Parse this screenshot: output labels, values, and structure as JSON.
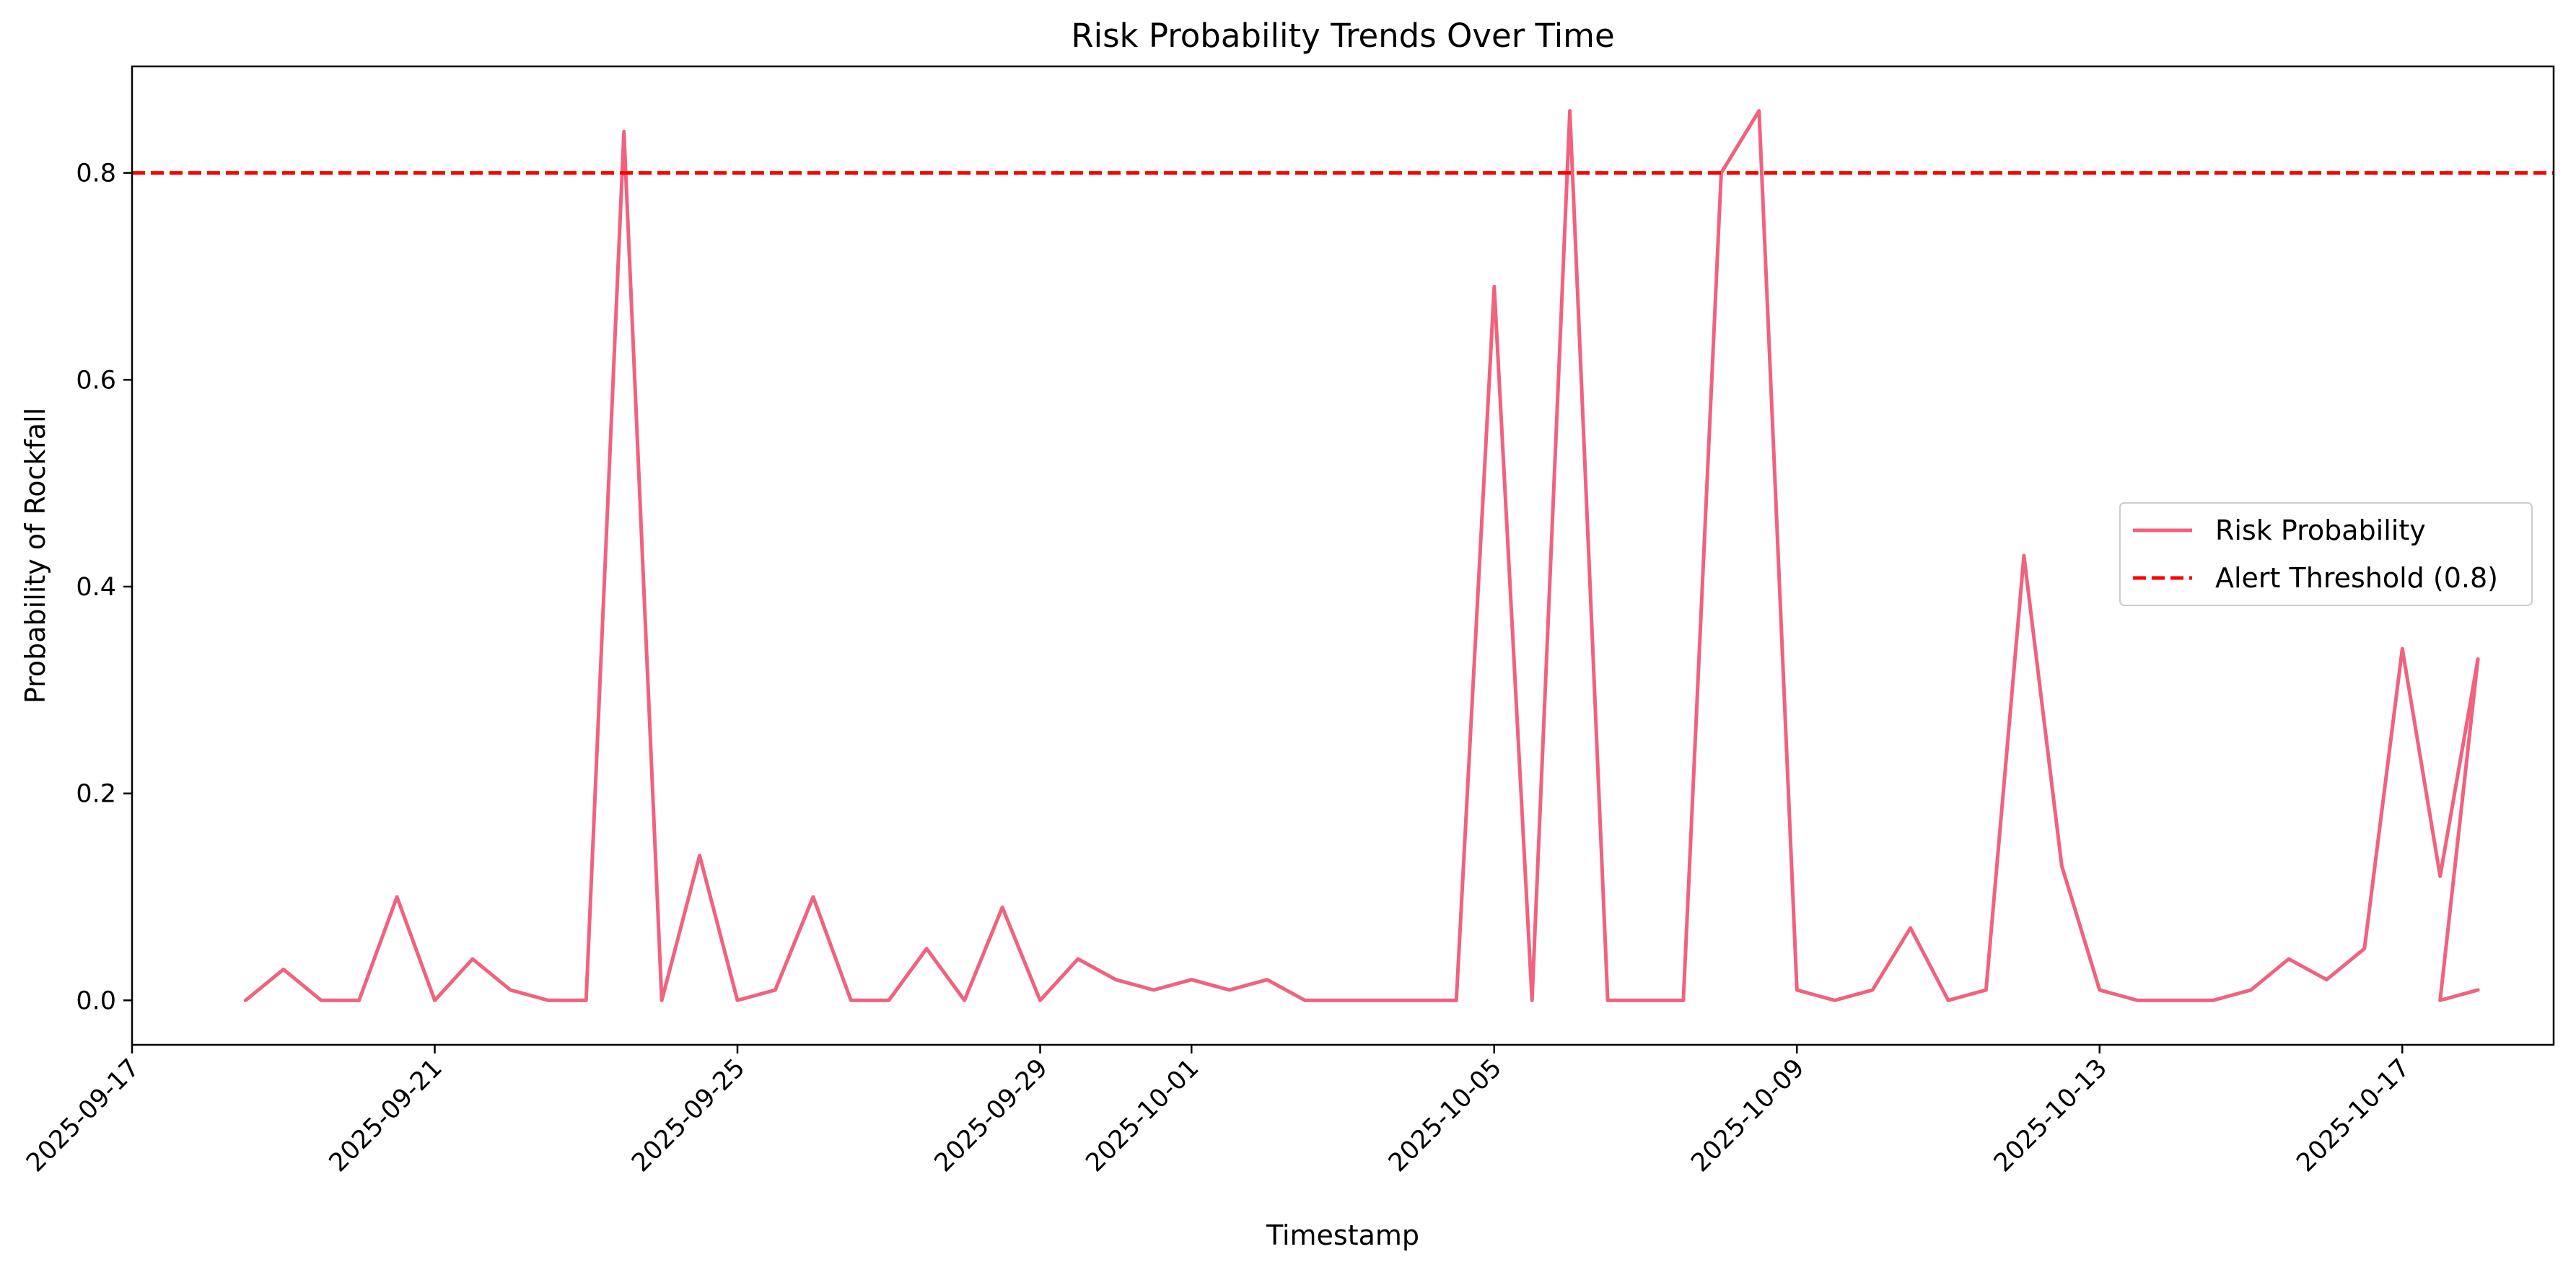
{
  "chart_data": {
    "type": "line",
    "title": "Risk Probability Trends Over Time",
    "xlabel": "Timestamp",
    "ylabel": "Probability of Rockfall",
    "x_ticks": [
      "2025-09-17",
      "2025-09-21",
      "2025-09-25",
      "2025-09-29",
      "2025-10-01",
      "2025-10-05",
      "2025-10-09",
      "2025-10-13",
      "2025-10-17"
    ],
    "y_ticks": [
      "0.0",
      "0.2",
      "0.4",
      "0.6",
      "0.8"
    ],
    "xlim": [
      "2025-09-17",
      "2025-10-19"
    ],
    "ylim": [
      -0.043,
      0.903
    ],
    "grid": false,
    "legend_position": "center-right",
    "series": [
      {
        "name": "Risk Probability",
        "color": "#f0627e",
        "style": "solid",
        "points": [
          [
            "2025-09-18 12:00",
            0.0
          ],
          [
            "2025-09-19 00:00",
            0.03
          ],
          [
            "2025-09-19 12:00",
            0.0
          ],
          [
            "2025-09-20 00:00",
            0.0
          ],
          [
            "2025-09-20 12:00",
            0.1
          ],
          [
            "2025-09-21 00:00",
            0.0
          ],
          [
            "2025-09-21 12:00",
            0.04
          ],
          [
            "2025-09-22 00:00",
            0.01
          ],
          [
            "2025-09-22 12:00",
            0.0
          ],
          [
            "2025-09-23 00:00",
            0.0
          ],
          [
            "2025-09-23 12:00",
            0.84
          ],
          [
            "2025-09-24 00:00",
            0.0
          ],
          [
            "2025-09-24 12:00",
            0.14
          ],
          [
            "2025-09-25 00:00",
            0.0
          ],
          [
            "2025-09-25 12:00",
            0.01
          ],
          [
            "2025-09-26 00:00",
            0.1
          ],
          [
            "2025-09-26 12:00",
            0.0
          ],
          [
            "2025-09-27 00:00",
            0.0
          ],
          [
            "2025-09-27 12:00",
            0.05
          ],
          [
            "2025-09-28 00:00",
            0.0
          ],
          [
            "2025-09-28 12:00",
            0.09
          ],
          [
            "2025-09-29 00:00",
            0.0
          ],
          [
            "2025-09-29 12:00",
            0.04
          ],
          [
            "2025-09-30 00:00",
            0.02
          ],
          [
            "2025-09-30 12:00",
            0.01
          ],
          [
            "2025-10-01 00:00",
            0.02
          ],
          [
            "2025-10-01 12:00",
            0.01
          ],
          [
            "2025-10-02 00:00",
            0.02
          ],
          [
            "2025-10-02 12:00",
            0.0
          ],
          [
            "2025-10-03 00:00",
            0.0
          ],
          [
            "2025-10-03 12:00",
            0.0
          ],
          [
            "2025-10-04 00:00",
            0.0
          ],
          [
            "2025-10-04 12:00",
            0.0
          ],
          [
            "2025-10-05 00:00",
            0.69
          ],
          [
            "2025-10-05 12:00",
            0.0
          ],
          [
            "2025-10-06 00:00",
            0.86
          ],
          [
            "2025-10-06 12:00",
            0.0
          ],
          [
            "2025-10-07 00:00",
            0.0
          ],
          [
            "2025-10-07 12:00",
            0.0
          ],
          [
            "2025-10-08 00:00",
            0.8
          ],
          [
            "2025-10-08 12:00",
            0.86
          ],
          [
            "2025-10-09 00:00",
            0.01
          ],
          [
            "2025-10-09 12:00",
            0.0
          ],
          [
            "2025-10-10 00:00",
            0.01
          ],
          [
            "2025-10-10 12:00",
            0.07
          ],
          [
            "2025-10-11 00:00",
            0.0
          ],
          [
            "2025-10-11 12:00",
            0.01
          ],
          [
            "2025-10-12 00:00",
            0.43
          ],
          [
            "2025-10-12 12:00",
            0.13
          ],
          [
            "2025-10-13 00:00",
            0.01
          ],
          [
            "2025-10-13 12:00",
            0.0
          ],
          [
            "2025-10-14 00:00",
            0.0
          ],
          [
            "2025-10-14 12:00",
            0.0
          ],
          [
            "2025-10-15 00:00",
            0.01
          ],
          [
            "2025-10-15 12:00",
            0.04
          ],
          [
            "2025-10-16 00:00",
            0.02
          ],
          [
            "2025-10-16 12:00",
            0.05
          ],
          [
            "2025-10-17 00:00",
            0.34
          ],
          [
            "2025-10-17 12:00",
            0.12
          ],
          [
            "2025-10-18 00:00",
            0.33
          ],
          [
            "2025-10-17 12:00",
            0.0
          ],
          [
            "2025-10-18 00:00",
            0.01
          ]
        ]
      },
      {
        "name": "Alert Threshold (0.8)",
        "color": "#ff0000",
        "style": "dashed",
        "y_constant": 0.8
      }
    ]
  }
}
